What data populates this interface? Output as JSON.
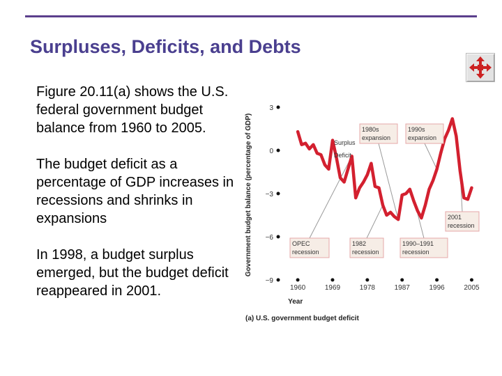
{
  "slide": {
    "title": "Surpluses, Deficits, and Debts",
    "paragraphs": [
      "Figure 20.11(a) shows the U.S. federal government budget balance from 1960 to 2005.",
      "The budget deficit as a percentage of GDP increases in recessions and shrinks in expansions",
      "In 1998, a budget surplus emerged, but the budget deficit reappeared in 2001."
    ]
  },
  "nav": {
    "icon": "four-way-arrows-icon",
    "color": "#cc2222"
  },
  "colors": {
    "accent": "#4a3f8f",
    "rule": "#5b3f8c",
    "line": "#d3202f",
    "box_fill": "#f6ede6",
    "box_border": "#e6a8a8"
  },
  "chart_data": {
    "type": "line",
    "caption": "(a) U.S. government budget deficit",
    "xlabel": "Year",
    "ylabel": "Government budget balance (percentage of GDP)",
    "xlim": [
      1958,
      2006
    ],
    "ylim": [
      -9,
      3
    ],
    "x_ticks": [
      1960,
      1969,
      1978,
      1987,
      1996,
      2005
    ],
    "y_ticks": [
      3,
      0,
      -3,
      -6,
      -9
    ],
    "y_tick_labels": [
      "3",
      "0",
      "−3",
      "−6",
      "−9"
    ],
    "grid": false,
    "zero_region_labels": {
      "above": "Surplus",
      "below": "Deficit"
    },
    "series": [
      {
        "name": "Budget balance",
        "x": [
          1960,
          1961,
          1962,
          1963,
          1964,
          1965,
          1966,
          1967,
          1968,
          1969,
          1970,
          1971,
          1972,
          1973,
          1974,
          1975,
          1976,
          1977,
          1978,
          1979,
          1980,
          1981,
          1982,
          1983,
          1984,
          1985,
          1986,
          1987,
          1988,
          1989,
          1990,
          1991,
          1992,
          1993,
          1994,
          1995,
          1996,
          1997,
          1998,
          1999,
          2000,
          2001,
          2002,
          2003,
          2004,
          2005
        ],
        "values": [
          1.3,
          0.4,
          0.5,
          0.1,
          0.4,
          -0.2,
          -0.3,
          -1.0,
          -1.3,
          0.7,
          -0.5,
          -1.9,
          -2.2,
          -1.3,
          -0.4,
          -3.3,
          -2.6,
          -2.2,
          -1.7,
          -0.9,
          -2.5,
          -2.6,
          -3.8,
          -4.5,
          -4.3,
          -4.6,
          -4.8,
          -3.1,
          -3.0,
          -2.7,
          -3.5,
          -4.2,
          -4.7,
          -3.8,
          -2.7,
          -2.1,
          -1.3,
          -0.2,
          0.8,
          1.4,
          2.2,
          1.0,
          -1.4,
          -3.3,
          -3.4,
          -2.6
        ]
      }
    ],
    "annotations": [
      {
        "label": "1980s expansion",
        "lines": [
          "1980s",
          "expansion"
        ],
        "target_year": 1986
      },
      {
        "label": "1990s expansion",
        "lines": [
          "1990s",
          "expansion"
        ],
        "target_year": 1996
      },
      {
        "label": "2001 recession",
        "lines": [
          "2001",
          "recession"
        ],
        "target_year": 2002
      },
      {
        "label": "OPEC recession",
        "lines": [
          "OPEC",
          "recession"
        ],
        "target_year": 1974
      },
      {
        "label": "1982 recession",
        "lines": [
          "1982",
          "recession"
        ],
        "target_year": 1982
      },
      {
        "label": "1990–1991 recession",
        "lines": [
          "1990–1991",
          "recession"
        ],
        "target_year": 1990.5
      }
    ]
  }
}
